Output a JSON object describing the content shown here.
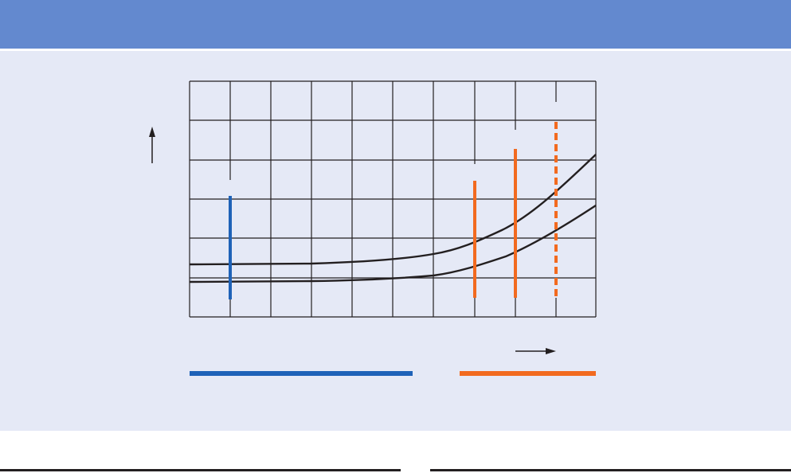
{
  "colors": {
    "header": "#6389cf",
    "panel": "#e5e9f6",
    "grid": "#231f20",
    "curve": "#231f20",
    "blue_marker": "#1e62b8",
    "orange_marker": "#f26a1f"
  },
  "icons": {
    "y_axis": "arrow-up-icon",
    "x_axis": "arrow-right-icon"
  }
}
